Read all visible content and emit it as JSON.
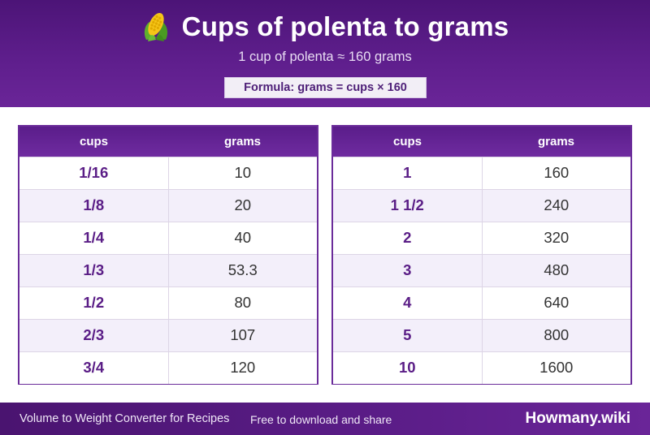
{
  "header": {
    "icon": "corn-icon",
    "title": "Cups of polenta to grams",
    "subtitle": "1 cup of polenta ≈ 160 grams",
    "formula": "Formula: grams = cups × 160"
  },
  "tables": [
    {
      "columns": [
        "cups",
        "grams"
      ],
      "rows": [
        {
          "cups": "1/16",
          "grams": "10"
        },
        {
          "cups": "1/8",
          "grams": "20"
        },
        {
          "cups": "1/4",
          "grams": "40"
        },
        {
          "cups": "1/3",
          "grams": "53.3"
        },
        {
          "cups": "1/2",
          "grams": "80"
        },
        {
          "cups": "2/3",
          "grams": "107"
        },
        {
          "cups": "3/4",
          "grams": "120"
        }
      ]
    },
    {
      "columns": [
        "cups",
        "grams"
      ],
      "rows": [
        {
          "cups": "1",
          "grams": "160"
        },
        {
          "cups": "1 1/2",
          "grams": "240"
        },
        {
          "cups": "2",
          "grams": "320"
        },
        {
          "cups": "3",
          "grams": "480"
        },
        {
          "cups": "4",
          "grams": "640"
        },
        {
          "cups": "5",
          "grams": "800"
        },
        {
          "cups": "10",
          "grams": "1600"
        }
      ]
    }
  ],
  "footer": {
    "left_text": "Volume to Weight Converter for Recipes",
    "mid_text": "Free to download and share",
    "brand": "Howmany.wiki"
  },
  "colors": {
    "header_purple": "#5e1e8c",
    "accent_text": "#5a1d86",
    "row_alt": "#f3effa"
  }
}
